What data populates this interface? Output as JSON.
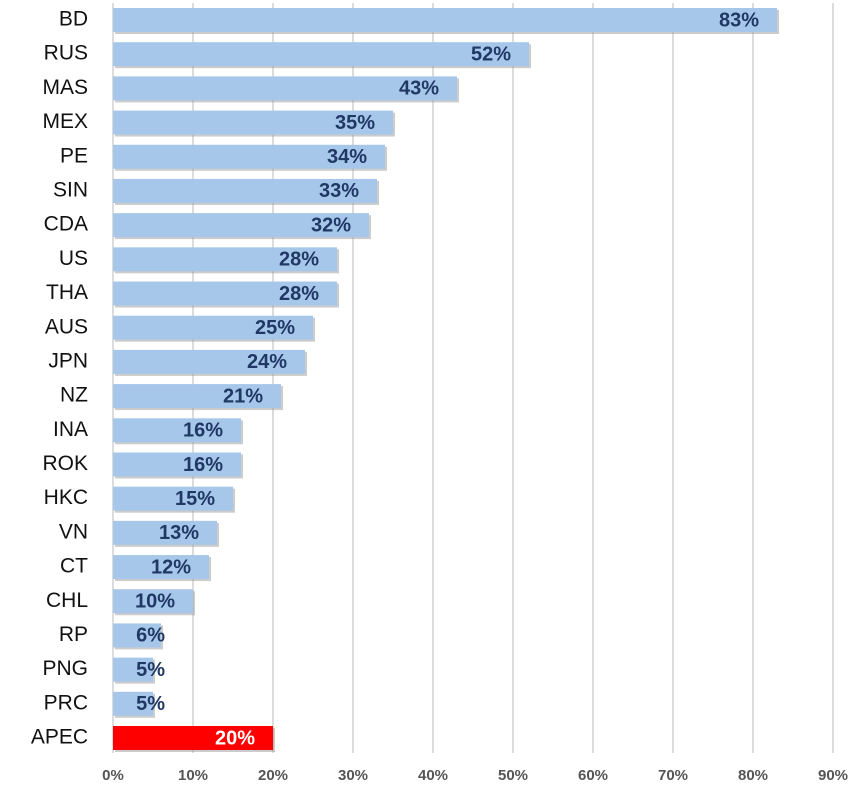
{
  "chart_data": {
    "type": "hbar",
    "categories": [
      "BD",
      "RUS",
      "MAS",
      "MEX",
      "PE",
      "SIN",
      "CDA",
      "US",
      "THA",
      "AUS",
      "JPN",
      "NZ",
      "INA",
      "ROK",
      "HKC",
      "VN",
      "CT",
      "CHL",
      "RP",
      "PNG",
      "PRC",
      "APEC"
    ],
    "values": [
      83,
      52,
      43,
      35,
      34,
      33,
      32,
      28,
      28,
      25,
      24,
      21,
      16,
      16,
      15,
      13,
      12,
      10,
      6,
      5,
      5,
      20
    ],
    "value_labels": [
      "83%",
      "52%",
      "43%",
      "35%",
      "34%",
      "33%",
      "32%",
      "28%",
      "28%",
      "25%",
      "24%",
      "21%",
      "16%",
      "16%",
      "15%",
      "13%",
      "12%",
      "10%",
      "6%",
      "5%",
      "5%",
      "20%"
    ],
    "colors": [
      "#a7c7ea",
      "#a7c7ea",
      "#a7c7ea",
      "#a7c7ea",
      "#a7c7ea",
      "#a7c7ea",
      "#a7c7ea",
      "#a7c7ea",
      "#a7c7ea",
      "#a7c7ea",
      "#a7c7ea",
      "#a7c7ea",
      "#a7c7ea",
      "#a7c7ea",
      "#a7c7ea",
      "#a7c7ea",
      "#a7c7ea",
      "#a7c7ea",
      "#a7c7ea",
      "#a7c7ea",
      "#a7c7ea",
      "#ff0000"
    ],
    "xlim": [
      0,
      90
    ],
    "xticks": [
      {
        "value": 0,
        "label": "0%"
      },
      {
        "value": 10,
        "label": "10%"
      },
      {
        "value": 20,
        "label": "20%"
      },
      {
        "value": 30,
        "label": "30%"
      },
      {
        "value": 40,
        "label": "40%"
      },
      {
        "value": 50,
        "label": "50%"
      },
      {
        "value": 60,
        "label": "60%"
      },
      {
        "value": 70,
        "label": "70%"
      },
      {
        "value": 80,
        "label": "80%"
      },
      {
        "value": 90,
        "label": "90%"
      }
    ],
    "grid": true
  }
}
